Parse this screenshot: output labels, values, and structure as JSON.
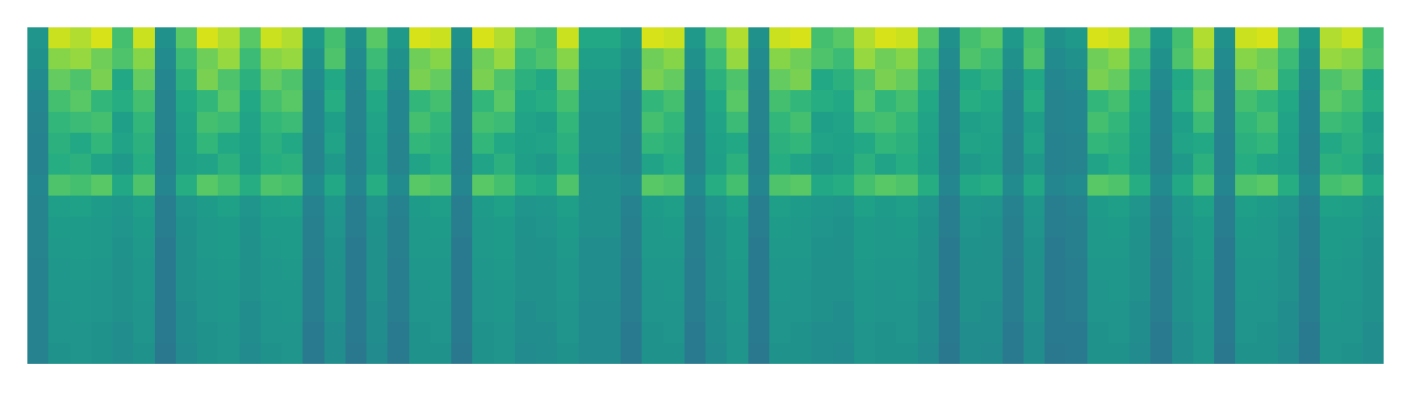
{
  "chart_data": {
    "type": "heatmap",
    "color": "viridis",
    "zlim": [
      0,
      100
    ],
    "tick_labels": false,
    "cells": [
      [
        52,
        50,
        48,
        46,
        45,
        44,
        44,
        46,
        45,
        45,
        45,
        44,
        44,
        44,
        44,
        44
      ],
      [
        92,
        82,
        76,
        70,
        66,
        64,
        62,
        72,
        56,
        55,
        54,
        53,
        53,
        52,
        52,
        51
      ],
      [
        88,
        84,
        72,
        74,
        68,
        60,
        64,
        70,
        57,
        55,
        55,
        54,
        53,
        53,
        52,
        52
      ],
      [
        94,
        78,
        80,
        66,
        70,
        66,
        58,
        74,
        55,
        54,
        54,
        53,
        52,
        52,
        51,
        51
      ],
      [
        70,
        72,
        60,
        62,
        56,
        58,
        54,
        60,
        53,
        52,
        51,
        50,
        50,
        50,
        49,
        49
      ],
      [
        92,
        82,
        76,
        70,
        66,
        64,
        62,
        72,
        56,
        55,
        54,
        53,
        53,
        52,
        52,
        51
      ],
      [
        50,
        48,
        46,
        45,
        45,
        44,
        44,
        46,
        42,
        42,
        41,
        41,
        41,
        41,
        41,
        40
      ],
      [
        74,
        68,
        64,
        60,
        58,
        57,
        56,
        62,
        52,
        51,
        50,
        50,
        50,
        49,
        49,
        48
      ],
      [
        94,
        78,
        80,
        66,
        70,
        66,
        58,
        74,
        55,
        54,
        54,
        53,
        52,
        52,
        51,
        51
      ],
      [
        88,
        84,
        72,
        74,
        68,
        60,
        64,
        70,
        57,
        55,
        55,
        54,
        53,
        53,
        52,
        52
      ],
      [
        74,
        68,
        64,
        60,
        58,
        57,
        56,
        62,
        52,
        51,
        50,
        50,
        50,
        49,
        49,
        48
      ],
      [
        92,
        82,
        76,
        70,
        66,
        64,
        62,
        72,
        56,
        55,
        54,
        53,
        53,
        52,
        52,
        51
      ],
      [
        88,
        84,
        72,
        74,
        68,
        60,
        64,
        70,
        57,
        55,
        55,
        54,
        53,
        53,
        52,
        52
      ],
      [
        54,
        50,
        48,
        46,
        46,
        45,
        45,
        48,
        44,
        43,
        43,
        42,
        42,
        42,
        41,
        41
      ],
      [
        70,
        72,
        60,
        62,
        56,
        58,
        54,
        60,
        53,
        52,
        51,
        50,
        50,
        50,
        49,
        49
      ],
      [
        50,
        48,
        46,
        45,
        45,
        44,
        44,
        46,
        42,
        42,
        41,
        41,
        41,
        41,
        41,
        40
      ],
      [
        74,
        68,
        64,
        60,
        58,
        57,
        56,
        62,
        52,
        51,
        50,
        50,
        50,
        49,
        49,
        48
      ],
      [
        54,
        50,
        48,
        46,
        46,
        45,
        45,
        48,
        44,
        43,
        43,
        42,
        42,
        42,
        41,
        41
      ],
      [
        94,
        78,
        80,
        66,
        70,
        66,
        58,
        74,
        55,
        54,
        54,
        53,
        52,
        52,
        51,
        51
      ],
      [
        92,
        82,
        76,
        70,
        66,
        64,
        62,
        72,
        56,
        55,
        54,
        53,
        53,
        52,
        52,
        51
      ],
      [
        50,
        48,
        46,
        45,
        45,
        44,
        44,
        46,
        42,
        42,
        41,
        41,
        41,
        41,
        41,
        40
      ],
      [
        94,
        78,
        80,
        66,
        70,
        66,
        58,
        74,
        55,
        54,
        54,
        53,
        52,
        52,
        51,
        51
      ],
      [
        88,
        84,
        72,
        74,
        68,
        60,
        64,
        70,
        57,
        55,
        55,
        54,
        53,
        53,
        52,
        52
      ],
      [
        74,
        68,
        64,
        60,
        58,
        57,
        56,
        62,
        52,
        51,
        50,
        50,
        50,
        49,
        49,
        48
      ],
      [
        70,
        72,
        60,
        62,
        56,
        58,
        54,
        60,
        53,
        52,
        51,
        50,
        50,
        50,
        49,
        49
      ],
      [
        92,
        82,
        76,
        70,
        66,
        64,
        62,
        72,
        56,
        55,
        54,
        53,
        53,
        52,
        52,
        51
      ],
      [
        60,
        56,
        54,
        52,
        50,
        50,
        49,
        50,
        50,
        50,
        49,
        49,
        49,
        48,
        48,
        48
      ],
      [
        60,
        56,
        54,
        52,
        50,
        50,
        49,
        50,
        50,
        50,
        49,
        49,
        49,
        48,
        48,
        48
      ],
      [
        54,
        50,
        48,
        46,
        46,
        45,
        45,
        48,
        44,
        43,
        43,
        42,
        42,
        42,
        41,
        41
      ],
      [
        94,
        78,
        80,
        66,
        70,
        66,
        58,
        74,
        55,
        54,
        54,
        53,
        52,
        52,
        51,
        51
      ],
      [
        92,
        82,
        76,
        70,
        66,
        64,
        62,
        72,
        56,
        55,
        54,
        53,
        53,
        52,
        52,
        51
      ],
      [
        54,
        50,
        48,
        46,
        46,
        45,
        45,
        48,
        44,
        43,
        43,
        42,
        42,
        42,
        41,
        41
      ],
      [
        74,
        68,
        64,
        60,
        58,
        57,
        56,
        62,
        52,
        51,
        50,
        50,
        50,
        49,
        49,
        48
      ],
      [
        88,
        84,
        72,
        74,
        68,
        60,
        64,
        70,
        57,
        55,
        55,
        54,
        53,
        53,
        52,
        52
      ],
      [
        50,
        48,
        46,
        45,
        45,
        44,
        44,
        46,
        42,
        42,
        41,
        41,
        41,
        41,
        41,
        40
      ],
      [
        92,
        82,
        76,
        70,
        66,
        64,
        62,
        72,
        56,
        55,
        54,
        53,
        53,
        52,
        52,
        51
      ],
      [
        94,
        78,
        80,
        66,
        70,
        66,
        58,
        74,
        55,
        54,
        54,
        53,
        52,
        52,
        51,
        51
      ],
      [
        70,
        72,
        60,
        62,
        56,
        58,
        54,
        60,
        53,
        52,
        51,
        50,
        50,
        50,
        49,
        49
      ],
      [
        74,
        68,
        64,
        60,
        58,
        57,
        56,
        62,
        52,
        51,
        50,
        50,
        50,
        49,
        49,
        48
      ],
      [
        88,
        84,
        72,
        74,
        68,
        60,
        64,
        70,
        57,
        55,
        55,
        54,
        53,
        53,
        52,
        52
      ],
      [
        94,
        78,
        80,
        66,
        70,
        66,
        58,
        74,
        55,
        54,
        54,
        53,
        52,
        52,
        51,
        51
      ],
      [
        92,
        82,
        76,
        70,
        66,
        64,
        62,
        72,
        56,
        55,
        54,
        53,
        53,
        52,
        52,
        51
      ],
      [
        74,
        68,
        64,
        60,
        58,
        57,
        56,
        62,
        52,
        51,
        50,
        50,
        50,
        49,
        49,
        48
      ],
      [
        50,
        48,
        46,
        45,
        45,
        44,
        44,
        46,
        42,
        42,
        41,
        41,
        41,
        41,
        41,
        40
      ],
      [
        70,
        72,
        60,
        62,
        56,
        58,
        54,
        60,
        53,
        52,
        51,
        50,
        50,
        50,
        49,
        49
      ],
      [
        74,
        68,
        64,
        60,
        58,
        57,
        56,
        62,
        52,
        51,
        50,
        50,
        50,
        49,
        49,
        48
      ],
      [
        54,
        50,
        48,
        46,
        46,
        45,
        45,
        48,
        44,
        43,
        43,
        42,
        42,
        42,
        41,
        41
      ],
      [
        70,
        72,
        60,
        62,
        56,
        58,
        54,
        60,
        53,
        52,
        51,
        50,
        50,
        50,
        49,
        49
      ],
      [
        50,
        48,
        46,
        45,
        45,
        44,
        44,
        46,
        42,
        42,
        41,
        41,
        41,
        41,
        41,
        40
      ],
      [
        54,
        50,
        48,
        46,
        46,
        45,
        45,
        48,
        44,
        43,
        43,
        42,
        42,
        42,
        41,
        41
      ],
      [
        94,
        78,
        80,
        66,
        70,
        66,
        58,
        74,
        55,
        54,
        54,
        53,
        52,
        52,
        51,
        51
      ],
      [
        92,
        82,
        76,
        70,
        66,
        64,
        62,
        72,
        56,
        55,
        54,
        53,
        53,
        52,
        52,
        51
      ],
      [
        74,
        68,
        64,
        60,
        58,
        57,
        56,
        62,
        52,
        51,
        50,
        50,
        50,
        49,
        49,
        48
      ],
      [
        54,
        50,
        48,
        46,
        46,
        45,
        45,
        48,
        44,
        43,
        43,
        42,
        42,
        42,
        41,
        41
      ],
      [
        70,
        72,
        60,
        62,
        56,
        58,
        54,
        60,
        53,
        52,
        51,
        50,
        50,
        50,
        49,
        49
      ],
      [
        88,
        84,
        72,
        74,
        68,
        60,
        64,
        70,
        57,
        55,
        55,
        54,
        53,
        53,
        52,
        52
      ],
      [
        50,
        48,
        46,
        45,
        45,
        44,
        44,
        46,
        42,
        42,
        41,
        41,
        41,
        41,
        41,
        40
      ],
      [
        92,
        82,
        76,
        70,
        66,
        64,
        62,
        72,
        56,
        55,
        54,
        53,
        53,
        52,
        52,
        51
      ],
      [
        94,
        78,
        80,
        66,
        70,
        66,
        58,
        74,
        55,
        54,
        54,
        53,
        52,
        52,
        51,
        51
      ],
      [
        74,
        68,
        64,
        60,
        58,
        57,
        56,
        62,
        52,
        51,
        50,
        50,
        50,
        49,
        49,
        48
      ],
      [
        54,
        50,
        48,
        46,
        46,
        45,
        45,
        48,
        44,
        43,
        43,
        42,
        42,
        42,
        41,
        41
      ],
      [
        88,
        84,
        72,
        74,
        68,
        60,
        64,
        70,
        57,
        55,
        55,
        54,
        53,
        53,
        52,
        52
      ],
      [
        92,
        82,
        76,
        70,
        66,
        64,
        62,
        72,
        56,
        55,
        54,
        53,
        53,
        52,
        52,
        51
      ],
      [
        70,
        72,
        60,
        62,
        56,
        58,
        54,
        60,
        53,
        52,
        51,
        50,
        50,
        50,
        49,
        49
      ]
    ]
  }
}
